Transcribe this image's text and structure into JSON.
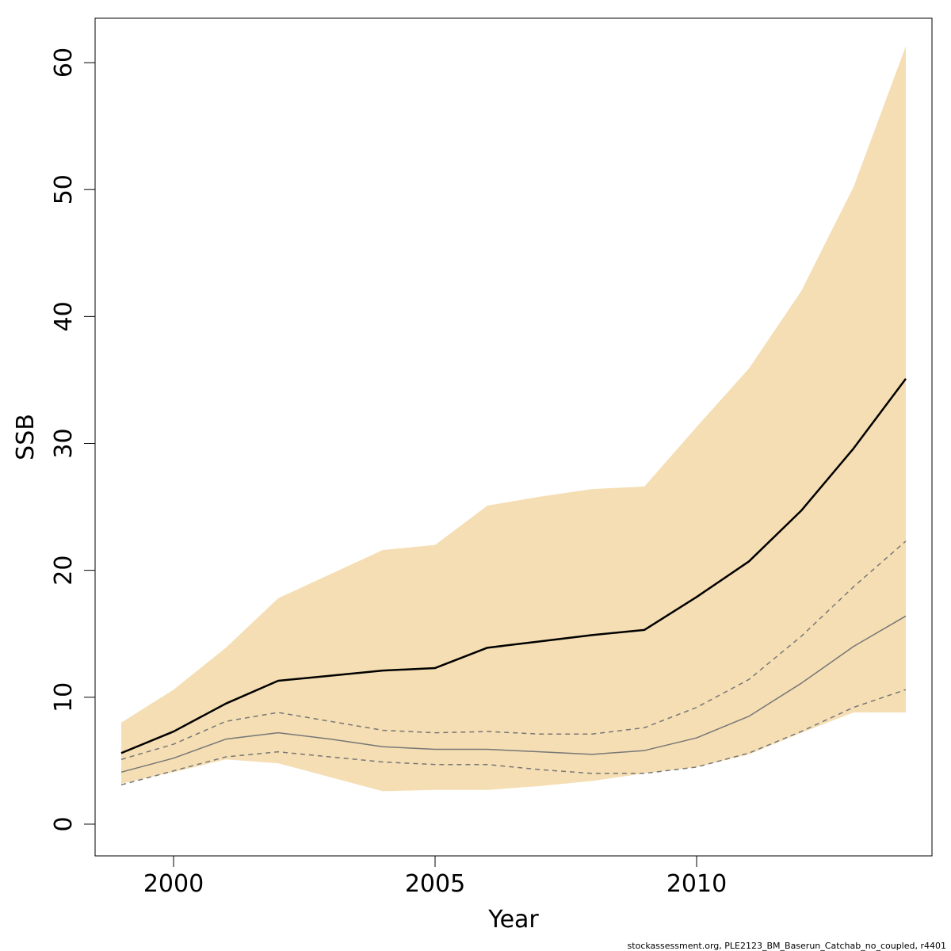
{
  "chart_data": {
    "type": "area",
    "xlabel": "Year",
    "ylabel": "SSB",
    "xlim": [
      1998.5,
      2014.5
    ],
    "ylim": [
      -2.5,
      63.5
    ],
    "x_ticks": [
      2000,
      2005,
      2010
    ],
    "y_ticks": [
      0,
      10,
      20,
      30,
      40,
      50,
      60
    ],
    "grid": false,
    "legend": "none",
    "x": [
      1999,
      2000,
      2001,
      2002,
      2003,
      2004,
      2005,
      2006,
      2007,
      2008,
      2009,
      2010,
      2011,
      2012,
      2013,
      2014
    ],
    "series": [
      {
        "role": "confidence-band",
        "color": "#f5deb3",
        "upper": [
          8.0,
          10.6,
          13.9,
          17.8,
          19.7,
          21.6,
          22.0,
          25.1,
          25.8,
          26.4,
          26.6,
          31.3,
          35.9,
          42.0,
          50.2,
          61.3
        ],
        "lower": [
          3.2,
          4.1,
          5.1,
          4.8,
          3.7,
          2.6,
          2.7,
          2.7,
          3.0,
          3.4,
          4.0,
          4.5,
          5.5,
          7.2,
          8.8,
          8.8
        ]
      },
      {
        "role": "median",
        "color": "#000000",
        "style": "solid",
        "values": [
          5.6,
          7.3,
          9.5,
          11.3,
          11.7,
          12.1,
          12.3,
          13.9,
          14.4,
          14.9,
          15.3,
          17.9,
          20.7,
          24.7,
          29.6,
          35.1
        ]
      },
      {
        "role": "reference",
        "color": "#777777",
        "style": "solid",
        "values": [
          4.1,
          5.2,
          6.7,
          7.2,
          6.7,
          6.1,
          5.9,
          5.9,
          5.7,
          5.5,
          5.8,
          6.8,
          8.5,
          11.1,
          14.0,
          16.4
        ]
      },
      {
        "role": "reference-upper",
        "color": "#777777",
        "style": "dashed",
        "values": [
          5.1,
          6.3,
          8.1,
          8.8,
          8.1,
          7.4,
          7.2,
          7.3,
          7.1,
          7.1,
          7.6,
          9.2,
          11.4,
          14.8,
          18.7,
          22.3
        ]
      },
      {
        "role": "reference-lower",
        "color": "#777777",
        "style": "dashed",
        "values": [
          3.1,
          4.2,
          5.3,
          5.7,
          5.3,
          4.9,
          4.7,
          4.7,
          4.3,
          4.0,
          4.0,
          4.5,
          5.6,
          7.3,
          9.2,
          10.6
        ]
      }
    ]
  },
  "footer": {
    "text": "stockassessment.org, PLE2123_BM_Baserun_Catchab_no_coupled, r4401"
  }
}
